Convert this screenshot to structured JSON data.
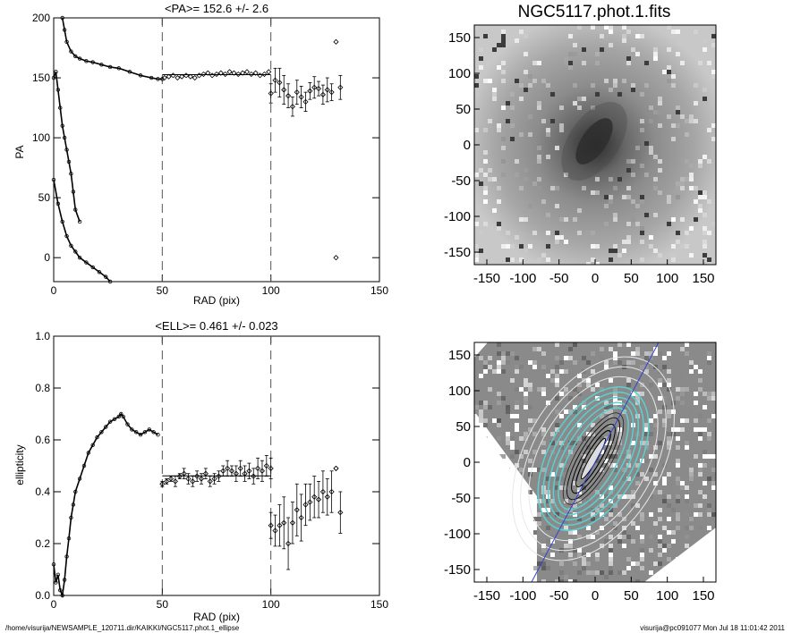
{
  "footer": {
    "left": "/home/visurija/NEWSAMPLE_120711.dir/KAIKKI/NGC5117.phot.1_ellipse",
    "right": "visurija@pc091077  Mon Jul 18 11:01:42 2011"
  },
  "chart_data": [
    {
      "type": "scatter",
      "title": "<PA>= 152.6 +/-   2.6",
      "xlabel": "RAD (pix)",
      "ylabel": "PA",
      "xlim": [
        0,
        150
      ],
      "ylim": [
        -20,
        200
      ],
      "xticks": [
        0,
        50,
        100,
        150
      ],
      "yticks": [
        0,
        50,
        100,
        150,
        200
      ],
      "mean_line": {
        "y": 152.6,
        "x_range": [
          50,
          100
        ]
      },
      "vlines": [
        50,
        100
      ],
      "inner_branches": [
        {
          "name": "upper",
          "x": [
            4,
            5,
            6,
            8,
            10,
            12,
            15,
            18,
            22,
            26,
            30,
            35,
            40,
            45,
            48,
            50
          ],
          "y": [
            200,
            190,
            180,
            172,
            168,
            166,
            164,
            163,
            161,
            159,
            158,
            155,
            152,
            150,
            149,
            149
          ]
        },
        {
          "name": "middle",
          "x": [
            0,
            1,
            2,
            3,
            4,
            5,
            6,
            7,
            8,
            9,
            10,
            12
          ],
          "y": [
            150,
            155,
            140,
            125,
            110,
            100,
            90,
            80,
            70,
            55,
            40,
            30
          ]
        },
        {
          "name": "lower",
          "x": [
            0,
            2,
            4,
            6,
            8,
            10,
            12,
            15,
            18,
            21,
            24,
            26
          ],
          "y": [
            65,
            45,
            30,
            18,
            10,
            5,
            0,
            -4,
            -8,
            -12,
            -16,
            -20
          ]
        }
      ],
      "outer_points": {
        "x": [
          51,
          53,
          55,
          57,
          59,
          61,
          63,
          65,
          67,
          69,
          71,
          73,
          75,
          77,
          79,
          81,
          83,
          85,
          87,
          89,
          91,
          93,
          95,
          97,
          99
        ],
        "y": [
          150,
          151,
          152,
          150,
          151,
          152,
          151,
          150,
          152,
          153,
          154,
          152,
          153,
          154,
          153,
          155,
          154,
          153,
          154,
          155,
          153,
          154,
          152,
          153,
          155
        ]
      },
      "outer_scatter": {
        "x": [
          100,
          102,
          104,
          106,
          108,
          110,
          112,
          114,
          116,
          118,
          120,
          122,
          124,
          126,
          128,
          130,
          132
        ],
        "y": [
          137,
          148,
          146,
          140,
          135,
          126,
          138,
          134,
          130,
          139,
          142,
          141,
          136,
          140,
          138,
          180,
          142
        ],
        "err": [
          8,
          10,
          12,
          12,
          10,
          8,
          10,
          9,
          8,
          7,
          9,
          6,
          8,
          10,
          7,
          0,
          10
        ]
      },
      "stray_point": {
        "x": 130,
        "y": 0
      }
    },
    {
      "type": "scatter",
      "title": "<ELL>= 0.461 +/-  0.023",
      "xlabel": "RAD (pix)",
      "ylabel": "ellipticity",
      "xlim": [
        0,
        150
      ],
      "ylim": [
        0.0,
        1.0
      ],
      "xticks": [
        0,
        50,
        100,
        150
      ],
      "yticks": [
        0.0,
        0.2,
        0.4,
        0.6,
        0.8,
        1.0
      ],
      "mean_line": {
        "y": 0.461,
        "x_range": [
          50,
          100
        ]
      },
      "vlines": [
        50,
        100
      ],
      "inner_curve": {
        "x": [
          0,
          1,
          2,
          3,
          4,
          5,
          6,
          7,
          8,
          9,
          10,
          12,
          14,
          16,
          18,
          20,
          22,
          24,
          26,
          28,
          30,
          31,
          32,
          34,
          36,
          38,
          40,
          42,
          44,
          46,
          48
        ],
        "y": [
          0.12,
          0.05,
          0.08,
          0.02,
          0.0,
          0.06,
          0.15,
          0.22,
          0.3,
          0.35,
          0.4,
          0.45,
          0.5,
          0.55,
          0.58,
          0.61,
          0.63,
          0.65,
          0.67,
          0.68,
          0.69,
          0.7,
          0.69,
          0.66,
          0.64,
          0.63,
          0.62,
          0.63,
          0.64,
          0.63,
          0.62
        ]
      },
      "mid_points": {
        "x": [
          50,
          52,
          54,
          56,
          58,
          60,
          62,
          64,
          66,
          68,
          70,
          72,
          74,
          76,
          78,
          80,
          82,
          84,
          86,
          88,
          90,
          92,
          94,
          96,
          98,
          100
        ],
        "y": [
          0.43,
          0.44,
          0.45,
          0.44,
          0.46,
          0.47,
          0.45,
          0.44,
          0.46,
          0.45,
          0.47,
          0.44,
          0.45,
          0.46,
          0.48,
          0.49,
          0.48,
          0.47,
          0.49,
          0.47,
          0.48,
          0.46,
          0.49,
          0.48,
          0.5,
          0.49
        ],
        "err": [
          0.01,
          0.01,
          0.01,
          0.02,
          0.01,
          0.02,
          0.02,
          0.02,
          0.02,
          0.02,
          0.02,
          0.02,
          0.02,
          0.02,
          0.02,
          0.03,
          0.02,
          0.03,
          0.03,
          0.03,
          0.03,
          0.03,
          0.04,
          0.04,
          0.04,
          0.04
        ]
      },
      "outer_scatter": {
        "x": [
          100,
          102,
          104,
          106,
          108,
          110,
          112,
          114,
          116,
          118,
          120,
          122,
          124,
          126,
          128,
          130,
          132
        ],
        "y": [
          0.27,
          0.25,
          0.27,
          0.28,
          0.2,
          0.28,
          0.33,
          0.3,
          0.35,
          0.36,
          0.38,
          0.37,
          0.4,
          0.38,
          0.4,
          0.49,
          0.32
        ],
        "err": [
          0.05,
          0.06,
          0.08,
          0.1,
          0.1,
          0.08,
          0.1,
          0.09,
          0.08,
          0.07,
          0.08,
          0.07,
          0.08,
          0.07,
          0.08,
          0.0,
          0.08
        ]
      },
      "stray_point": {
        "x": 130,
        "y": 0.49
      }
    }
  ],
  "images": [
    {
      "title": "NGC5117.phot.1.fits",
      "xticks": [
        "-150",
        "-100",
        "-50",
        "0",
        "50",
        "100",
        "150"
      ],
      "yticks": [
        "150",
        "100",
        "50",
        "0",
        "-50",
        "-100",
        "-150"
      ]
    },
    {
      "title": "",
      "xticks": [
        "-150",
        "-100",
        "-50",
        "0",
        "50",
        "100",
        "150"
      ],
      "yticks": [
        "150",
        "100",
        "50",
        "0",
        "-50",
        "-100",
        "-150"
      ]
    }
  ]
}
